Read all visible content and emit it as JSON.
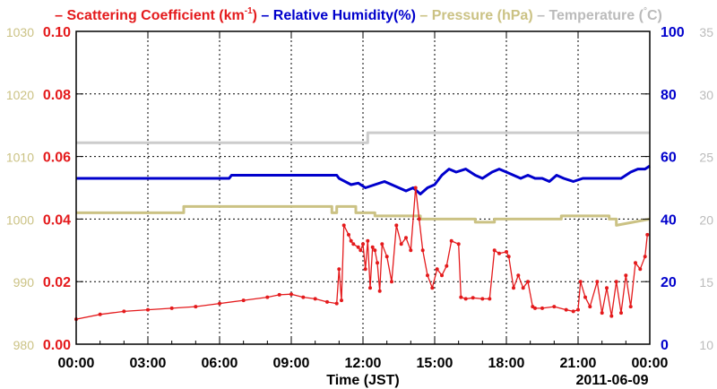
{
  "chart_data": {
    "type": "line",
    "legend": {
      "placement": "top",
      "items": [
        {
          "dash": "–",
          "label": "Scattering Coefficient (km",
          "sup": "-1",
          "label_end": ")",
          "color": "#e41a1c"
        },
        {
          "dash": "–",
          "label": "Relative Humidity(%)",
          "color": "#0000cc"
        },
        {
          "dash": "–",
          "label": "Pressure (hPa)",
          "color": "#cbc284"
        },
        {
          "dash": "–",
          "label": "Temperature (",
          "sup": "°",
          "label_end": "C)",
          "color": "#bbbbbb"
        }
      ]
    },
    "xlabel": "Time (JST)",
    "date_label": "2011-06-09",
    "x_ticks": [
      "00:00",
      "03:00",
      "06:00",
      "09:00",
      "12:00",
      "15:00",
      "18:00",
      "21:00",
      "00:00"
    ],
    "xlim": [
      0,
      24
    ],
    "grid": true,
    "axes": {
      "pressure": {
        "side": "left-outer",
        "color": "#cbc284",
        "ylim": [
          980,
          1030
        ],
        "ticks": [
          "980",
          "990",
          "1000",
          "1010",
          "1020",
          "1030"
        ]
      },
      "scattering": {
        "side": "left-inner",
        "color": "#e41a1c",
        "ylim": [
          0,
          0.1
        ],
        "ticks": [
          "0.00",
          "0.02",
          "0.04",
          "0.06",
          "0.08",
          "0.10"
        ]
      },
      "humidity": {
        "side": "right-inner",
        "color": "#0000cc",
        "ylim": [
          0,
          100
        ],
        "ticks": [
          "0",
          "20",
          "40",
          "60",
          "80",
          "100"
        ]
      },
      "temperature": {
        "side": "right-outer",
        "color": "#bbbbbb",
        "ylim": [
          10,
          35
        ],
        "ticks": [
          "10",
          "15",
          "20",
          "25",
          "30",
          "35"
        ]
      }
    },
    "series": [
      {
        "axis": "temperature",
        "color": "#cccccc",
        "style": "step",
        "x": [
          0,
          12.2,
          12.2,
          24
        ],
        "y": [
          26.1,
          26.1,
          26.9,
          26.9
        ]
      },
      {
        "axis": "pressure",
        "color": "#cbc284",
        "style": "step",
        "x": [
          0,
          4.5,
          4.5,
          10.7,
          10.7,
          10.9,
          10.9,
          11.7,
          11.7,
          12.5,
          12.5,
          14.4,
          14.4,
          16.7,
          16.7,
          17.5,
          17.5,
          20.3,
          20.3,
          22.3,
          22.3,
          22.6,
          22.6,
          24
        ],
        "y": [
          1001,
          1001,
          1002,
          1002,
          1001,
          1001,
          1002,
          1002,
          1001,
          1001,
          1000.5,
          1000.5,
          1000,
          1000,
          999.5,
          999.5,
          1000,
          1000,
          1000.5,
          1000.5,
          1000,
          1000,
          999,
          1000
        ]
      },
      {
        "axis": "humidity",
        "color": "#0000cc",
        "style": "line",
        "x": [
          0,
          6.4,
          6.5,
          10.9,
          11.0,
          11.5,
          11.8,
          12.1,
          12.5,
          12.9,
          13.2,
          13.5,
          13.8,
          14.1,
          14.4,
          14.7,
          15.0,
          15.3,
          15.6,
          15.9,
          16.3,
          16.7,
          17.0,
          17.4,
          17.7,
          18.0,
          18.3,
          18.6,
          18.9,
          19.2,
          19.5,
          19.8,
          20.1,
          20.4,
          20.8,
          21.2,
          21.6,
          22.0,
          22.4,
          22.8,
          23.2,
          23.5,
          23.8,
          24.0
        ],
        "y": [
          53,
          53,
          54,
          54,
          53,
          51,
          51.5,
          50,
          51,
          52,
          51,
          50,
          49,
          50,
          48,
          50,
          51,
          54,
          56,
          55,
          56,
          54,
          53,
          55,
          56,
          55,
          54,
          53,
          54,
          53,
          53,
          52,
          54,
          53,
          52,
          53,
          53,
          53,
          53,
          53,
          55,
          56,
          56,
          57
        ]
      },
      {
        "axis": "scattering",
        "color": "#e41a1c",
        "style": "line-markers",
        "x": [
          0,
          1,
          2,
          3,
          4,
          5,
          6,
          7,
          8,
          8.5,
          9,
          9.5,
          10,
          10.5,
          10.9,
          11.0,
          11.1,
          11.2,
          11.4,
          11.5,
          11.6,
          11.8,
          11.9,
          12.0,
          12.1,
          12.2,
          12.3,
          12.4,
          12.5,
          12.6,
          12.7,
          12.8,
          13.0,
          13.2,
          13.4,
          13.6,
          13.8,
          14.0,
          14.2,
          14.35,
          14.5,
          14.7,
          14.9,
          15.1,
          15.3,
          15.5,
          15.7,
          16.0,
          16.1,
          16.3,
          16.6,
          17.0,
          17.3,
          17.5,
          17.7,
          18.0,
          18.1,
          18.3,
          18.5,
          18.7,
          18.9,
          19.1,
          19.2,
          19.5,
          20.0,
          20.5,
          20.8,
          21.0,
          21.1,
          21.3,
          21.5,
          21.8,
          22.0,
          22.2,
          22.4,
          22.6,
          22.8,
          23.0,
          23.2,
          23.4,
          23.6,
          23.8,
          23.9
        ],
        "y": [
          0.008,
          0.0095,
          0.0105,
          0.011,
          0.0115,
          0.012,
          0.013,
          0.014,
          0.015,
          0.0158,
          0.016,
          0.015,
          0.0145,
          0.0135,
          0.013,
          0.024,
          0.014,
          0.038,
          0.035,
          0.033,
          0.032,
          0.031,
          0.03,
          0.032,
          0.024,
          0.033,
          0.018,
          0.031,
          0.03,
          0.026,
          0.017,
          0.032,
          0.028,
          0.02,
          0.038,
          0.032,
          0.034,
          0.03,
          0.05,
          0.04,
          0.03,
          0.022,
          0.018,
          0.024,
          0.022,
          0.025,
          0.033,
          0.032,
          0.015,
          0.0145,
          0.0148,
          0.0145,
          0.0145,
          0.03,
          0.029,
          0.0295,
          0.028,
          0.018,
          0.022,
          0.018,
          0.02,
          0.012,
          0.0115,
          0.0115,
          0.012,
          0.011,
          0.0105,
          0.011,
          0.02,
          0.015,
          0.012,
          0.02,
          0.01,
          0.018,
          0.009,
          0.02,
          0.01,
          0.022,
          0.012,
          0.026,
          0.024,
          0.028,
          0.035
        ]
      }
    ]
  }
}
